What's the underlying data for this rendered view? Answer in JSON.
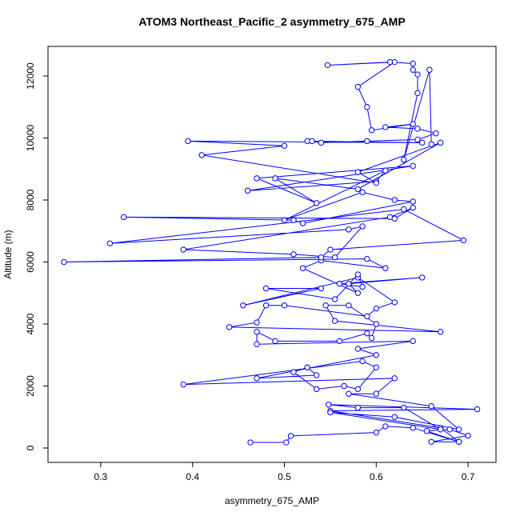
{
  "chart_data": {
    "type": "line",
    "title": "ATOM3 Northeast_Pacific_2 asymmetry_675_AMP",
    "x_label": "asymmetry_675_AMP",
    "y_label": "Altitude (m)",
    "color": "#0000ff",
    "markers": true,
    "xlim": [
      0.2426,
      0.7304
    ],
    "ylim": [
      -464,
      12955
    ],
    "xticks": [
      0.3,
      0.4,
      0.5,
      0.6,
      0.7
    ],
    "yticks": [
      0,
      2000,
      4000,
      6000,
      8000,
      10000,
      12000
    ],
    "x": [
      0.463,
      0.502,
      0.507,
      0.6,
      0.61,
      0.64,
      0.69,
      0.66,
      0.7,
      0.68,
      0.655,
      0.69,
      0.67,
      0.55,
      0.71,
      0.548,
      0.58,
      0.63,
      0.67,
      0.55,
      0.62,
      0.69,
      0.66,
      0.57,
      0.6,
      0.62,
      0.39,
      0.585,
      0.6,
      0.58,
      0.565,
      0.535,
      0.51,
      0.525,
      0.535,
      0.47,
      0.6,
      0.58,
      0.64,
      0.47,
      0.47,
      0.49,
      0.56,
      0.59,
      0.595,
      0.6,
      0.57,
      0.545,
      0.555,
      0.67,
      0.44,
      0.47,
      0.48,
      0.5,
      0.59,
      0.6,
      0.62,
      0.58,
      0.455,
      0.54,
      0.48,
      0.555,
      0.58,
      0.585,
      0.56,
      0.65,
      0.57,
      0.58,
      0.52,
      0.54,
      0.61,
      0.59,
      0.26,
      0.54,
      0.55,
      0.695,
      0.63,
      0.31,
      0.57,
      0.585,
      0.555,
      0.51,
      0.39,
      0.615,
      0.64,
      0.62,
      0.325,
      0.51,
      0.52,
      0.64,
      0.62,
      0.585,
      0.5,
      0.61,
      0.6,
      0.46,
      0.64,
      0.47,
      0.535,
      0.49,
      0.58,
      0.67,
      0.58,
      0.6,
      0.41,
      0.5,
      0.395,
      0.65,
      0.525,
      0.53,
      0.54,
      0.59,
      0.645,
      0.665,
      0.645,
      0.61,
      0.64,
      0.595,
      0.59,
      0.58,
      0.62,
      0.547,
      0.615,
      0.64,
      0.64,
      0.645,
      0.645,
      0.63,
      0.658,
      0.66
    ],
    "values": [
      180,
      180,
      390,
      500,
      700,
      650,
      200,
      200,
      400,
      600,
      550,
      200,
      650,
      1200,
      1250,
      1400,
      1300,
      1300,
      600,
      1150,
      1000,
      600,
      1350,
      1750,
      1750,
      2250,
      2050,
      2800,
      2600,
      1900,
      2000,
      1900,
      2450,
      2600,
      2350,
      2250,
      3000,
      3200,
      3450,
      3350,
      3750,
      3450,
      3450,
      3700,
      3550,
      4000,
      4600,
      4600,
      4100,
      3750,
      3900,
      4050,
      4600,
      4600,
      4250,
      4500,
      4700,
      5500,
      4600,
      5150,
      5150,
      4800,
      5600,
      5200,
      5300,
      5500,
      5300,
      5000,
      5800,
      6050,
      5800,
      6100,
      6000,
      6150,
      6400,
      6700,
      7700,
      6600,
      7050,
      7150,
      6150,
      6250,
      6400,
      7450,
      7750,
      7400,
      7450,
      7350,
      7250,
      7950,
      8000,
      8250,
      7350,
      8950,
      8600,
      8300,
      9100,
      8700,
      7900,
      8700,
      8350,
      9850,
      8900,
      8550,
      9450,
      9750,
      9900,
      9850,
      9900,
      9900,
      9850,
      9900,
      9950,
      10150,
      10300,
      10350,
      10450,
      10250,
      11000,
      11650,
      12450,
      12350,
      12450,
      12400,
      12200,
      12050,
      11450,
      9300,
      12200,
      9800
    ]
  }
}
